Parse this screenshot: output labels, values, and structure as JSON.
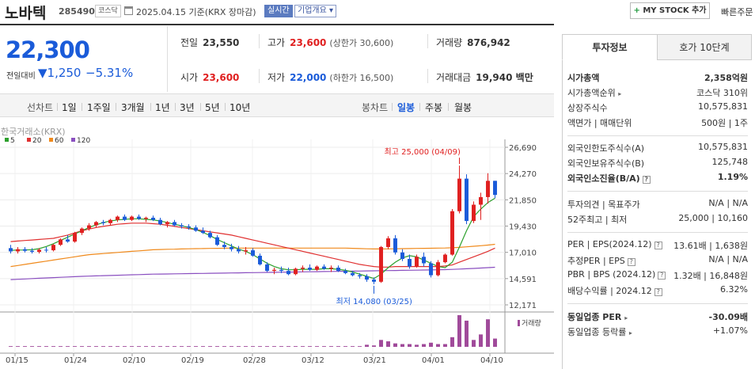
{
  "header": {
    "name": "노바텍",
    "code": "285490",
    "market": "코스닥",
    "date": "2025.04.15 기준(KRX 장마감)",
    "realtime": "실시간",
    "company_info": "기업개요 ▾",
    "mystock": "MY STOCK 추가",
    "mystock_plus": "+",
    "quick_order": "빠른주문"
  },
  "price": {
    "current": "22,300",
    "vs_label": "전일대비",
    "change_abs": "▼1,250",
    "change_pct": "−5.31%"
  },
  "stats": {
    "prev_label": "전일",
    "prev": "23,550",
    "high_label": "고가",
    "high": "23,600",
    "upper_limit": "(상한가 30,600)",
    "volume_label": "거래량",
    "volume": "876,942",
    "open_label": "시가",
    "open": "23,600",
    "low_label": "저가",
    "low": "22,000",
    "lower_limit": "(하한가 16,500)",
    "amount_label": "거래대금",
    "amount": "19,940 백만"
  },
  "chart_tabs": {
    "line_section": "선차트",
    "line": [
      "1일",
      "1주일",
      "3개월",
      "1년",
      "3년",
      "5년",
      "10년"
    ],
    "candle_section": "봉차트",
    "candle": [
      "일봉",
      "주봉",
      "월봉"
    ],
    "active": "일봉"
  },
  "right_tabs": {
    "info": "투자정보",
    "orderbook": "호가 10단계"
  },
  "right_info": {
    "market_cap_label": "시가총액",
    "market_cap": "2,358억원",
    "cap_rank_label": "시가총액순위",
    "cap_rank": "코스닥 310위",
    "shares_label": "상장주식수",
    "shares": "10,575,831",
    "face_label": "액면가 | 매매단위",
    "face": "500원 | 1주",
    "foreign_limit_label": "외국인한도주식수(A)",
    "foreign_limit": "10,575,831",
    "foreign_hold_label": "외국인보유주식수(B)",
    "foreign_hold": "125,748",
    "foreign_ratio_label": "외국인소진율(B/A)",
    "foreign_ratio": "1.19%",
    "opinion_label": "투자의견 | 목표주가",
    "opinion": "N/A | N/A",
    "week52_label": "52주최고 | 최저",
    "week52": "25,000 | 10,160",
    "per_label": "PER | EPS(2024.12)",
    "per": "13.61배 | 1,638원",
    "est_per_label": "추정PER | EPS",
    "est_per": "N/A | N/A",
    "pbr_label": "PBR | BPS (2024.12)",
    "pbr": "1.32배 | 16,848원",
    "dividend_label": "배당수익률 | 2024.12",
    "dividend": "6.32%",
    "ind_per_label": "동일업종 PER",
    "ind_per": "-30.09배",
    "ind_rate_label": "동일업종 등락률",
    "ind_rate": "+1.07%"
  },
  "chart_data": {
    "type": "candlestick",
    "source_label": "한국거래소(KRX)",
    "ma_legend": [
      {
        "name": "5",
        "color": "#2ca02c"
      },
      {
        "name": "20",
        "color": "#e03030"
      },
      {
        "name": "60",
        "color": "#f08a1c"
      },
      {
        "name": "120",
        "color": "#8a4fc0"
      }
    ],
    "y_ticks": [
      "26,690",
      "24,270",
      "21,850",
      "19,430",
      "17,010",
      "14,591",
      "12,171"
    ],
    "ylim": [
      12171,
      26690
    ],
    "x_ticks": [
      "01/15",
      "01/24",
      "02/10",
      "02/19",
      "02/28",
      "03/12",
      "03/21",
      "04/01",
      "04/10"
    ],
    "annotations": {
      "high": "최고 25,000 (04/09)",
      "low": "최저 14,080 (03/25)"
    },
    "volume_label": "거래량",
    "candles": [
      [
        17400,
        17700,
        16900,
        17100
      ],
      [
        17100,
        17500,
        16900,
        17300
      ],
      [
        17300,
        17500,
        17000,
        17150
      ],
      [
        17150,
        17400,
        16900,
        17050
      ],
      [
        17050,
        17400,
        16900,
        17250
      ],
      [
        17250,
        17500,
        17000,
        17200
      ],
      [
        17200,
        17800,
        17100,
        17700
      ],
      [
        17700,
        18300,
        17600,
        18200
      ],
      [
        18200,
        18600,
        17900,
        18000
      ],
      [
        18000,
        18900,
        17900,
        18800
      ],
      [
        18800,
        19300,
        18600,
        19200
      ],
      [
        19200,
        19700,
        19000,
        19500
      ],
      [
        19500,
        19900,
        19300,
        19800
      ],
      [
        19800,
        20000,
        19500,
        19700
      ],
      [
        19700,
        20100,
        19500,
        20000
      ],
      [
        20000,
        20400,
        19800,
        20300
      ],
      [
        20300,
        20500,
        19900,
        20000
      ],
      [
        20000,
        20400,
        19900,
        20300
      ],
      [
        20300,
        20500,
        20000,
        20100
      ],
      [
        20100,
        20300,
        19800,
        20200
      ],
      [
        20200,
        20400,
        19900,
        20000
      ],
      [
        20000,
        20200,
        19500,
        19600
      ],
      [
        19600,
        19900,
        19300,
        19800
      ],
      [
        19800,
        20000,
        19400,
        19500
      ],
      [
        19500,
        19700,
        19200,
        19400
      ],
      [
        19400,
        19600,
        19100,
        19300
      ],
      [
        19300,
        19500,
        18900,
        19000
      ],
      [
        19000,
        19300,
        18700,
        18800
      ],
      [
        18800,
        19000,
        18300,
        18400
      ],
      [
        18400,
        18600,
        17600,
        17700
      ],
      [
        17700,
        18000,
        17300,
        17500
      ],
      [
        17500,
        17800,
        17100,
        17300
      ],
      [
        17300,
        17600,
        16900,
        17100
      ],
      [
        17100,
        17500,
        16800,
        17200
      ],
      [
        17200,
        17400,
        16600,
        16700
      ],
      [
        16700,
        16900,
        15800,
        15900
      ],
      [
        15900,
        16100,
        15200,
        15300
      ],
      [
        15300,
        15600,
        15000,
        15400
      ],
      [
        15400,
        15700,
        15100,
        15300
      ],
      [
        15300,
        15600,
        14900,
        15000
      ],
      [
        15000,
        15600,
        14900,
        15500
      ],
      [
        15500,
        15800,
        15200,
        15600
      ],
      [
        15600,
        15900,
        15300,
        15400
      ],
      [
        15400,
        15800,
        15300,
        15700
      ],
      [
        15700,
        15900,
        15400,
        15500
      ],
      [
        15500,
        15800,
        15200,
        15600
      ],
      [
        15600,
        15800,
        15200,
        15300
      ],
      [
        15300,
        15500,
        15000,
        15100
      ],
      [
        15100,
        15300,
        14800,
        14900
      ],
      [
        14900,
        15100,
        14600,
        14800
      ],
      [
        14800,
        15000,
        14300,
        14500
      ],
      [
        14500,
        14700,
        14080,
        14300
      ],
      [
        14300,
        17600,
        14200,
        17500
      ],
      [
        17500,
        18500,
        17300,
        18300
      ],
      [
        18300,
        18600,
        16800,
        17000
      ],
      [
        17000,
        17300,
        16200,
        16400
      ],
      [
        16400,
        16800,
        15500,
        15700
      ],
      [
        15700,
        16800,
        15600,
        16600
      ],
      [
        16600,
        17000,
        15700,
        16000
      ],
      [
        16000,
        16200,
        14700,
        14900
      ],
      [
        14900,
        16300,
        14800,
        16100
      ],
      [
        16100,
        16900,
        16000,
        16800
      ],
      [
        16800,
        21000,
        16700,
        20800
      ],
      [
        20800,
        25000,
        20600,
        23800
      ],
      [
        23800,
        24200,
        19600,
        19900
      ],
      [
        19900,
        21700,
        19700,
        21400
      ],
      [
        21400,
        22500,
        20000,
        22100
      ],
      [
        22100,
        24300,
        21500,
        23600
      ],
      [
        23600,
        23600,
        22000,
        22300
      ]
    ],
    "volumes": [
      1,
      1,
      1,
      1,
      1,
      1,
      1,
      1,
      1,
      1,
      1,
      1,
      1,
      1,
      1,
      1,
      1,
      1,
      1,
      1,
      1,
      1,
      1,
      1,
      1,
      1,
      1,
      1,
      1,
      1,
      1,
      1,
      1,
      1,
      1,
      1,
      1,
      1,
      1,
      1,
      1,
      1,
      1,
      1,
      1,
      1,
      1,
      1,
      1,
      1,
      3,
      2,
      10,
      8,
      5,
      4,
      4,
      3,
      4,
      6,
      4,
      4,
      14,
      46,
      38,
      10,
      18,
      40,
      12
    ],
    "ma5": [
      17200,
      17220,
      17230,
      17250,
      17350,
      17550,
      17800,
      18100,
      18400,
      18700,
      19000,
      19300,
      19550,
      19750,
      19900,
      20000,
      20050,
      20100,
      20100,
      20050,
      20000,
      19900,
      19750,
      19600,
      19450,
      19300,
      19100,
      18850,
      18550,
      18200,
      17900,
      17600,
      17300,
      17100,
      16800,
      16400,
      16000,
      15700,
      15500,
      15400,
      15400,
      15450,
      15450,
      15450,
      15500,
      15500,
      15450,
      15350,
      15200,
      15000,
      14800,
      14600,
      15000,
      15600,
      16100,
      16500,
      16700,
      16600,
      16300,
      16000,
      15700,
      15600,
      16100,
      17500,
      19000,
      20300,
      21000,
      21600,
      22000
    ],
    "ma20": [
      18000,
      18050,
      18100,
      18150,
      18200,
      18250,
      18300,
      18450,
      18600,
      18800,
      19000,
      19150,
      19300,
      19400,
      19500,
      19600,
      19650,
      19700,
      19700,
      19700,
      19650,
      19600,
      19500,
      19400,
      19300,
      19200,
      19100,
      19000,
      18900,
      18800,
      18700,
      18600,
      18450,
      18300,
      18150,
      18000,
      17850,
      17700,
      17550,
      17400,
      17250,
      17100,
      16950,
      16800,
      16650,
      16500,
      16350,
      16200,
      16050,
      15900,
      15800,
      15700,
      15650,
      15650,
      15700,
      15700,
      15700,
      15700,
      15700,
      15700,
      15700,
      15750,
      15850,
      16100,
      16350,
      16600,
      16850,
      17100,
      17400
    ],
    "ma60": [
      15700,
      15800,
      15900,
      16000,
      16100,
      16200,
      16300,
      16400,
      16500,
      16600,
      16700,
      16800,
      16850,
      16900,
      16950,
      17000,
      17050,
      17100,
      17150,
      17200,
      17250,
      17270,
      17290,
      17300,
      17320,
      17340,
      17350,
      17360,
      17370,
      17380,
      17390,
      17400,
      17400,
      17400,
      17400,
      17400,
      17400,
      17400,
      17400,
      17400,
      17400,
      17400,
      17400,
      17400,
      17400,
      17400,
      17400,
      17400,
      17380,
      17360,
      17340,
      17320,
      17320,
      17330,
      17340,
      17350,
      17360,
      17370,
      17380,
      17390,
      17400,
      17410,
      17430,
      17470,
      17520,
      17570,
      17620,
      17680,
      17750
    ],
    "ma120": [
      14500,
      14530,
      14560,
      14590,
      14620,
      14650,
      14680,
      14710,
      14740,
      14770,
      14800,
      14820,
      14840,
      14860,
      14880,
      14900,
      14920,
      14940,
      14960,
      14980,
      15000,
      15010,
      15020,
      15030,
      15040,
      15050,
      15060,
      15070,
      15080,
      15090,
      15100,
      15110,
      15120,
      15130,
      15140,
      15150,
      15160,
      15170,
      15180,
      15190,
      15200,
      15210,
      15220,
      15230,
      15240,
      15250,
      15260,
      15270,
      15280,
      15290,
      15300,
      15310,
      15320,
      15330,
      15340,
      15350,
      15360,
      15370,
      15380,
      15390,
      15400,
      15420,
      15440,
      15470,
      15500,
      15530,
      15560,
      15600,
      15640
    ]
  }
}
